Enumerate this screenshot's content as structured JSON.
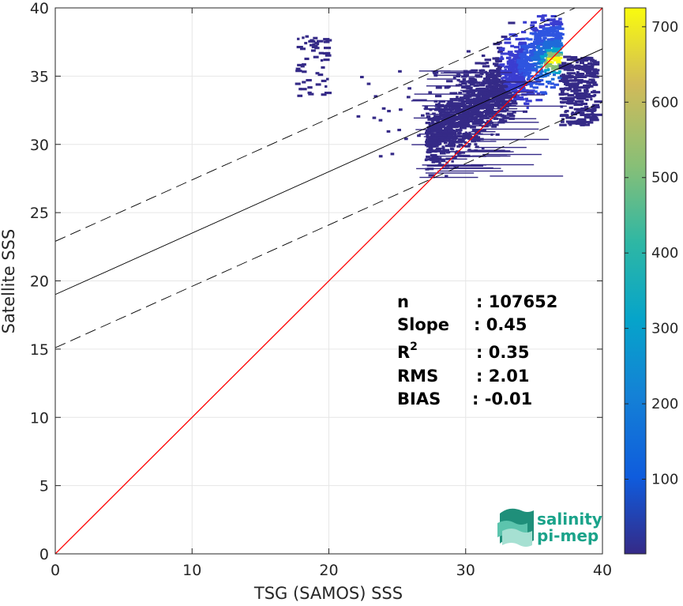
{
  "chart_data": {
    "type": "heatmap",
    "subtype": "2d-density-scatter",
    "title": "",
    "xlabel": "TSG (SAMOS) SSS",
    "ylabel": "Satellite SSS",
    "xlim": [
      0,
      40
    ],
    "ylim": [
      0,
      40
    ],
    "xticks": [
      0,
      10,
      20,
      30,
      40
    ],
    "yticks": [
      0,
      5,
      10,
      15,
      20,
      25,
      30,
      35,
      40
    ],
    "grid": true,
    "colorbar": {
      "colormap": "parula",
      "range": [
        1,
        725
      ],
      "ticks": [
        100,
        200,
        300,
        400,
        500,
        600,
        700
      ]
    },
    "lines": [
      {
        "id": "identity",
        "style": "solid",
        "color": "#ff0000",
        "intercept": 0,
        "slope": 1
      },
      {
        "id": "regression",
        "style": "solid",
        "color": "#000000",
        "intercept": 19.0,
        "slope": 0.45
      },
      {
        "id": "upper-bound",
        "style": "dashed",
        "color": "#000000",
        "intercept": 22.9,
        "slope": 0.45
      },
      {
        "id": "lower-bound",
        "style": "dashed",
        "color": "#000000",
        "intercept": 15.1,
        "slope": 0.45
      }
    ],
    "density_regions": [
      {
        "x_range": [
          27,
          40
        ],
        "y_range": [
          27,
          39.5
        ],
        "peak": [
          36.3,
          36.2
        ],
        "peak_count": 725
      },
      {
        "x_range": [
          17.5,
          20
        ],
        "y_range": [
          33.5,
          38.3
        ],
        "peak_count": 30
      }
    ],
    "stats": [
      {
        "label": "n",
        "value": ": 107652"
      },
      {
        "label": "Slope",
        "value": ": 0.45"
      },
      {
        "label": "R",
        "sup": "2",
        "value": ": 0.35"
      },
      {
        "label": "RMS",
        "value": ": 2.01"
      },
      {
        "label": "BIAS",
        "value": ": -0.01"
      }
    ]
  },
  "logo": {
    "line1": "salinity",
    "line2": "pi-mep",
    "color": "#1aa38a"
  }
}
